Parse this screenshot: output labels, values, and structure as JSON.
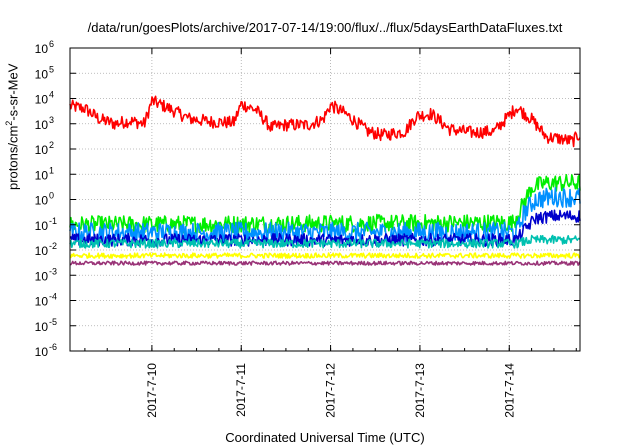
{
  "title": "/data/run/goesPlots/archive/2017-07-14/19:00/flux/../flux/5daysEarthDataFluxes.txt",
  "chart_data": {
    "type": "line",
    "title": "/data/run/goesPlots/archive/2017-07-14/19:00/flux/../flux/5daysEarthDataFluxes.txt",
    "xlabel": "Coordinated Universal Time (UTC)",
    "ylabel": {
      "prefix": "protons/cm",
      "exponent": "2",
      "suffix": "-s-sr-MeV"
    },
    "xlim": [
      "2017-07-09T02:00",
      "2017-07-14T19:00"
    ],
    "xticks": [
      {
        "date": "2017-07-10T00:00",
        "label": "2017-7-10"
      },
      {
        "date": "2017-07-11T00:00",
        "label": "2017-7-11"
      },
      {
        "date": "2017-07-12T00:00",
        "label": "2017-7-12"
      },
      {
        "date": "2017-07-13T00:00",
        "label": "2017-7-13"
      },
      {
        "date": "2017-07-14T00:00",
        "label": "2017-7-14"
      }
    ],
    "yscale": "log",
    "ylim": [
      1e-06,
      1000000.0
    ],
    "yticks": [
      {
        "value": 1000000.0,
        "mant": "10",
        "exp": "6"
      },
      {
        "value": 100000.0,
        "mant": "10",
        "exp": "5"
      },
      {
        "value": 10000.0,
        "mant": "10",
        "exp": "4"
      },
      {
        "value": 1000.0,
        "mant": "10",
        "exp": "3"
      },
      {
        "value": 100.0,
        "mant": "10",
        "exp": "2"
      },
      {
        "value": 10.0,
        "mant": "10",
        "exp": "1"
      },
      {
        "value": 1.0,
        "mant": "10",
        "exp": "0"
      },
      {
        "value": 0.1,
        "mant": "10",
        "exp": "-1"
      },
      {
        "value": 0.01,
        "mant": "10",
        "exp": "-2"
      },
      {
        "value": 0.001,
        "mant": "10",
        "exp": "-3"
      },
      {
        "value": 0.0001,
        "mant": "10",
        "exp": "-4"
      },
      {
        "value": 1e-05,
        "mant": "10",
        "exp": "-5"
      },
      {
        "value": 1e-06,
        "mant": "10",
        "exp": "-6"
      }
    ],
    "grid": true,
    "series": [
      {
        "color": "#ff0000",
        "noise": 0.5,
        "points": [
          [
            "2017-07-09T02:00",
            5000
          ],
          [
            "2017-07-09T06:00",
            4000
          ],
          [
            "2017-07-09T10:00",
            1500
          ],
          [
            "2017-07-09T14:00",
            1000
          ],
          [
            "2017-07-09T18:00",
            1300
          ],
          [
            "2017-07-09T22:00",
            1000
          ],
          [
            "2017-07-10T00:00",
            8000
          ],
          [
            "2017-07-10T04:00",
            4500
          ],
          [
            "2017-07-10T10:00",
            1600
          ],
          [
            "2017-07-10T16:00",
            1200
          ],
          [
            "2017-07-10T22:00",
            1100
          ],
          [
            "2017-07-11T00:00",
            6000
          ],
          [
            "2017-07-11T04:00",
            3500
          ],
          [
            "2017-07-11T08:00",
            700
          ],
          [
            "2017-07-11T12:00",
            900
          ],
          [
            "2017-07-11T18:00",
            900
          ],
          [
            "2017-07-11T22:00",
            1500
          ],
          [
            "2017-07-12T00:00",
            5500
          ],
          [
            "2017-07-12T04:00",
            2500
          ],
          [
            "2017-07-12T10:00",
            500
          ],
          [
            "2017-07-12T14:00",
            350
          ],
          [
            "2017-07-12T20:00",
            500
          ],
          [
            "2017-07-12T23:00",
            2000
          ],
          [
            "2017-07-13T03:00",
            2500
          ],
          [
            "2017-07-13T08:00",
            600
          ],
          [
            "2017-07-13T14:00",
            450
          ],
          [
            "2017-07-13T20:00",
            500
          ],
          [
            "2017-07-13T23:00",
            1500
          ],
          [
            "2017-07-14T02:00",
            4500
          ],
          [
            "2017-07-14T06:00",
            1500
          ],
          [
            "2017-07-14T10:00",
            300
          ],
          [
            "2017-07-14T14:00",
            250
          ],
          [
            "2017-07-14T17:00",
            200
          ],
          [
            "2017-07-14T19:00",
            400
          ]
        ]
      },
      {
        "color": "#00ee00",
        "noise": 0.7,
        "points": [
          [
            "2017-07-09T02:00",
            0.1
          ],
          [
            "2017-07-14T01:00",
            0.12
          ],
          [
            "2017-07-14T03:00",
            0.4
          ],
          [
            "2017-07-14T06:00",
            3
          ],
          [
            "2017-07-14T10:00",
            4.5
          ],
          [
            "2017-07-14T19:00",
            4.5
          ]
        ]
      },
      {
        "color": "#0090ff",
        "noise": 0.8,
        "points": [
          [
            "2017-07-09T02:00",
            0.05
          ],
          [
            "2017-07-14T02:00",
            0.05
          ],
          [
            "2017-07-14T04:00",
            0.3
          ],
          [
            "2017-07-14T07:00",
            1.0
          ],
          [
            "2017-07-14T12:00",
            1.3
          ],
          [
            "2017-07-14T19:00",
            1.2
          ]
        ]
      },
      {
        "color": "#0000cc",
        "noise": 0.5,
        "points": [
          [
            "2017-07-09T02:00",
            0.025
          ],
          [
            "2017-07-14T02:00",
            0.025
          ],
          [
            "2017-07-14T04:00",
            0.06
          ],
          [
            "2017-07-14T07:00",
            0.18
          ],
          [
            "2017-07-14T12:00",
            0.22
          ],
          [
            "2017-07-14T19:00",
            0.22
          ]
        ]
      },
      {
        "color": "#00c0b0",
        "noise": 0.35,
        "points": [
          [
            "2017-07-09T02:00",
            0.018
          ],
          [
            "2017-07-14T02:00",
            0.018
          ],
          [
            "2017-07-14T06:00",
            0.025
          ],
          [
            "2017-07-14T19:00",
            0.025
          ]
        ]
      },
      {
        "color": "#ffff00",
        "noise": 0.2,
        "points": [
          [
            "2017-07-09T02:00",
            0.006
          ],
          [
            "2017-07-14T19:00",
            0.006
          ]
        ]
      },
      {
        "color": "#993377",
        "noise": 0.15,
        "points": [
          [
            "2017-07-09T02:00",
            0.003
          ],
          [
            "2017-07-14T19:00",
            0.003
          ]
        ]
      }
    ]
  }
}
